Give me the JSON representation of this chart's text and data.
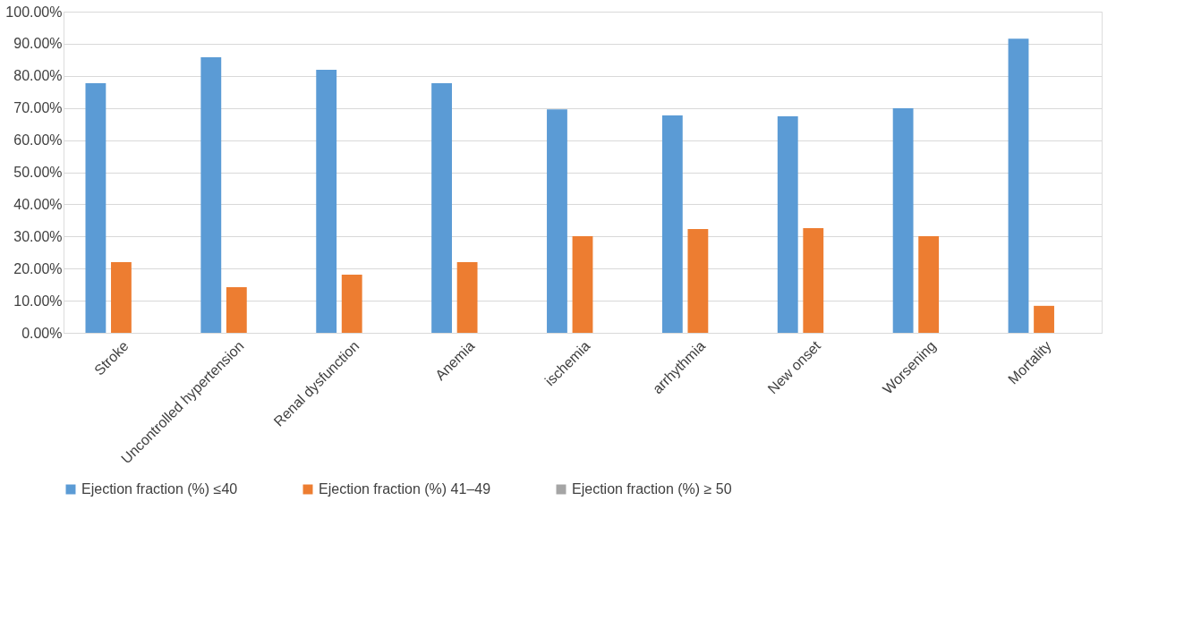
{
  "chart_data": {
    "type": "bar",
    "categories": [
      "Stroke",
      "Uncontrolled hypertension",
      "Renal dysfunction",
      "Anemia",
      "ischemia",
      "arrhythmia",
      "New onset",
      "Worsening",
      "Mortality"
    ],
    "series": [
      {
        "name": "Ejection fraction (%) ≤40",
        "color": "#5b9bd5",
        "values": [
          77.7,
          85.8,
          81.9,
          77.7,
          69.6,
          67.7,
          67.4,
          69.9,
          91.6
        ]
      },
      {
        "name": "Ejection fraction (%) 41–49",
        "color": "#ed7d31",
        "values": [
          22.0,
          14.2,
          18.1,
          22.0,
          30.1,
          32.3,
          32.6,
          30.1,
          8.4
        ]
      },
      {
        "name": "Ejection fraction (%) ≥ 50",
        "color": "#a5a5a5",
        "values": [
          null,
          null,
          null,
          null,
          null,
          null,
          null,
          null,
          null
        ]
      }
    ],
    "ylim": [
      0,
      100
    ],
    "yticks": [
      {
        "value": 0,
        "label": "0.00%"
      },
      {
        "value": 10,
        "label": "10.00%"
      },
      {
        "value": 20,
        "label": "20.00%"
      },
      {
        "value": 30,
        "label": "30.00%"
      },
      {
        "value": 40,
        "label": "40.00%"
      },
      {
        "value": 50,
        "label": "50.00%"
      },
      {
        "value": 60,
        "label": "60.00%"
      },
      {
        "value": 70,
        "label": "70.00%"
      },
      {
        "value": 80,
        "label": "80.00%"
      },
      {
        "value": 90,
        "label": "90.00%"
      },
      {
        "value": 100,
        "label": "100.00%"
      }
    ],
    "grid": "y",
    "legend": "bottom"
  }
}
